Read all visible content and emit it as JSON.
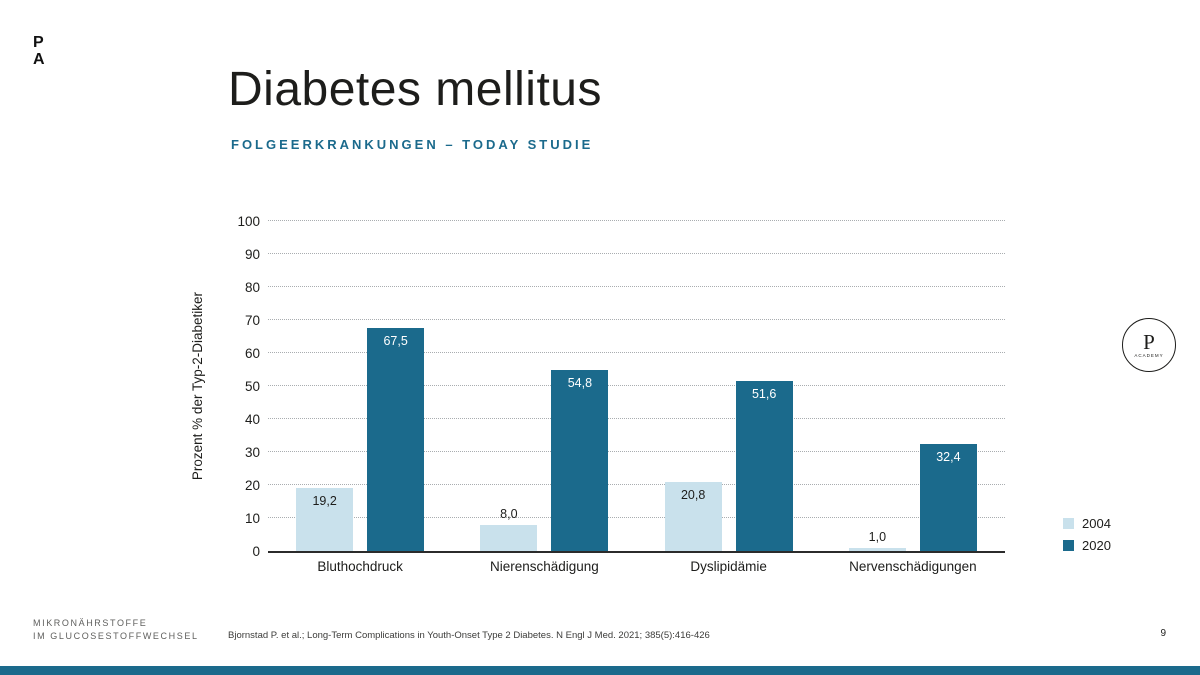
{
  "slide": {
    "logo": {
      "line1": "P",
      "line2": "A"
    },
    "title": "Diabetes mellitus",
    "subtitle": "FOLGEERKRANKUNGEN – TODAY STUDIE",
    "badge": {
      "letter": "P",
      "word": "ACADEMY"
    },
    "footer": {
      "left_line1": "MIKRONÄHRSTOFFE",
      "left_line2": "IM GLUCOSESTOFFWECHSEL",
      "citation": "Bjornstad P. et al.; Long-Term Complications in Youth-Onset Type 2 Diabetes. N Engl J Med. 2021; 385(5):416-426",
      "page_number": "9"
    }
  },
  "chart_data": {
    "type": "bar",
    "title": "",
    "categories": [
      "Bluthochdruck",
      "Nierenschädigung",
      "Dyslipidämie",
      "Nervenschädigungen"
    ],
    "series": [
      {
        "name": "2004",
        "color": "#c9e1ec",
        "label_color_inside": "#1d1d1b",
        "values": [
          19.2,
          8.0,
          20.8,
          1.0
        ],
        "labels": [
          "19,2",
          "8,0",
          "20,8",
          "1,0"
        ]
      },
      {
        "name": "2020",
        "color": "#1b6a8c",
        "label_color_inside": "#ffffff",
        "values": [
          67.5,
          54.8,
          51.6,
          32.4
        ],
        "labels": [
          "67,5",
          "54,8",
          "51,6",
          "32,4"
        ]
      }
    ],
    "xlabel": "",
    "ylabel": "Prozent % der Typ-2-Diabetiker",
    "ylim": [
      0,
      100
    ],
    "yticks": [
      0,
      10,
      20,
      30,
      40,
      50,
      60,
      70,
      80,
      90,
      100
    ],
    "grid": "horizontal-dotted",
    "legend_position": "right-bottom"
  },
  "colors": {
    "accent_dark": "#1b6a8c",
    "accent_light": "#c9e1ec",
    "text_dark": "#1d1d1b"
  }
}
